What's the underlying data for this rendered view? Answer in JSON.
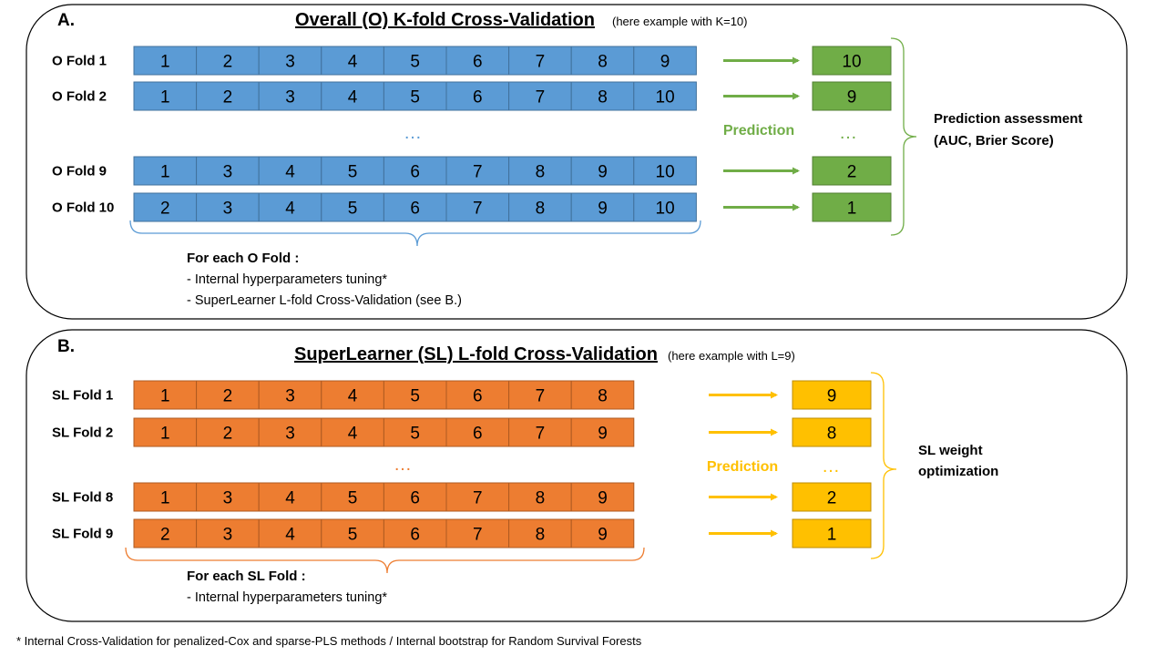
{
  "colors": {
    "blue_cell": "#5b9bd5",
    "blue_stroke": "#41719c",
    "green_cell": "#70ad47",
    "green_stroke": "#507e32",
    "green_arrow": "#70ad47",
    "orange_cell": "#ed7d31",
    "orange_stroke": "#ae5a21",
    "yellow_cell": "#ffc000",
    "yellow_stroke": "#bc8c00",
    "yellow_arrow": "#ffc000",
    "brace_blue": "#5b9bd5",
    "brace_green": "#70ad47",
    "brace_orange": "#ed7d31",
    "brace_yellow": "#ffc000",
    "dots_blue": "#5b9bd5",
    "dots_green": "#70ad47",
    "dots_orange": "#ed7d31",
    "dots_yellow": "#ffc000"
  },
  "sectionA": {
    "letter": "A.",
    "title": "Overall (O) K-fold Cross-Validation",
    "subtitle": "(here example with K=10)",
    "folds": [
      {
        "label": "O Fold 1",
        "cells": [
          "1",
          "2",
          "3",
          "4",
          "5",
          "6",
          "7",
          "8",
          "9"
        ],
        "test": "10"
      },
      {
        "label": "O Fold 2",
        "cells": [
          "1",
          "2",
          "3",
          "4",
          "5",
          "6",
          "7",
          "8",
          "10"
        ],
        "test": "9"
      },
      {
        "label": "O Fold 9",
        "cells": [
          "1",
          "3",
          "4",
          "5",
          "6",
          "7",
          "8",
          "9",
          "10"
        ],
        "test": "2"
      },
      {
        "label": "O Fold 10",
        "cells": [
          "2",
          "3",
          "4",
          "5",
          "6",
          "7",
          "8",
          "9",
          "10"
        ],
        "test": "1"
      }
    ],
    "ellipsis": "…",
    "prediction_label": "Prediction",
    "assessment_line1": "Prediction assessment",
    "assessment_line2": "(AUC, Brier Score)",
    "note_header": "For each O Fold :",
    "note_items": [
      "- Internal hyperparameters tuning*",
      "- SuperLearner L-fold Cross-Validation (see B.)"
    ]
  },
  "sectionB": {
    "letter": "B.",
    "title": "SuperLearner (SL) L-fold Cross-Validation",
    "subtitle": "(here example with L=9)",
    "folds": [
      {
        "label": "SL Fold 1",
        "cells": [
          "1",
          "2",
          "3",
          "4",
          "5",
          "6",
          "7",
          "8"
        ],
        "test": "9"
      },
      {
        "label": "SL Fold 2",
        "cells": [
          "1",
          "2",
          "3",
          "4",
          "5",
          "6",
          "7",
          "9"
        ],
        "test": "8"
      },
      {
        "label": "SL Fold 8",
        "cells": [
          "1",
          "3",
          "4",
          "5",
          "6",
          "7",
          "8",
          "9"
        ],
        "test": "2"
      },
      {
        "label": "SL Fold 9",
        "cells": [
          "2",
          "3",
          "4",
          "5",
          "6",
          "7",
          "8",
          "9"
        ],
        "test": "1"
      }
    ],
    "ellipsis": "…",
    "prediction_label": "Prediction",
    "weight_line1": "SL weight",
    "weight_line2": "optimization",
    "note_header": "For each SL Fold :",
    "note_items": [
      "- Internal hyperparameters tuning*"
    ]
  },
  "footnote": "* Internal Cross-Validation for penalized-Cox and sparse-PLS methods / Internal bootstrap for Random Survival Forests"
}
